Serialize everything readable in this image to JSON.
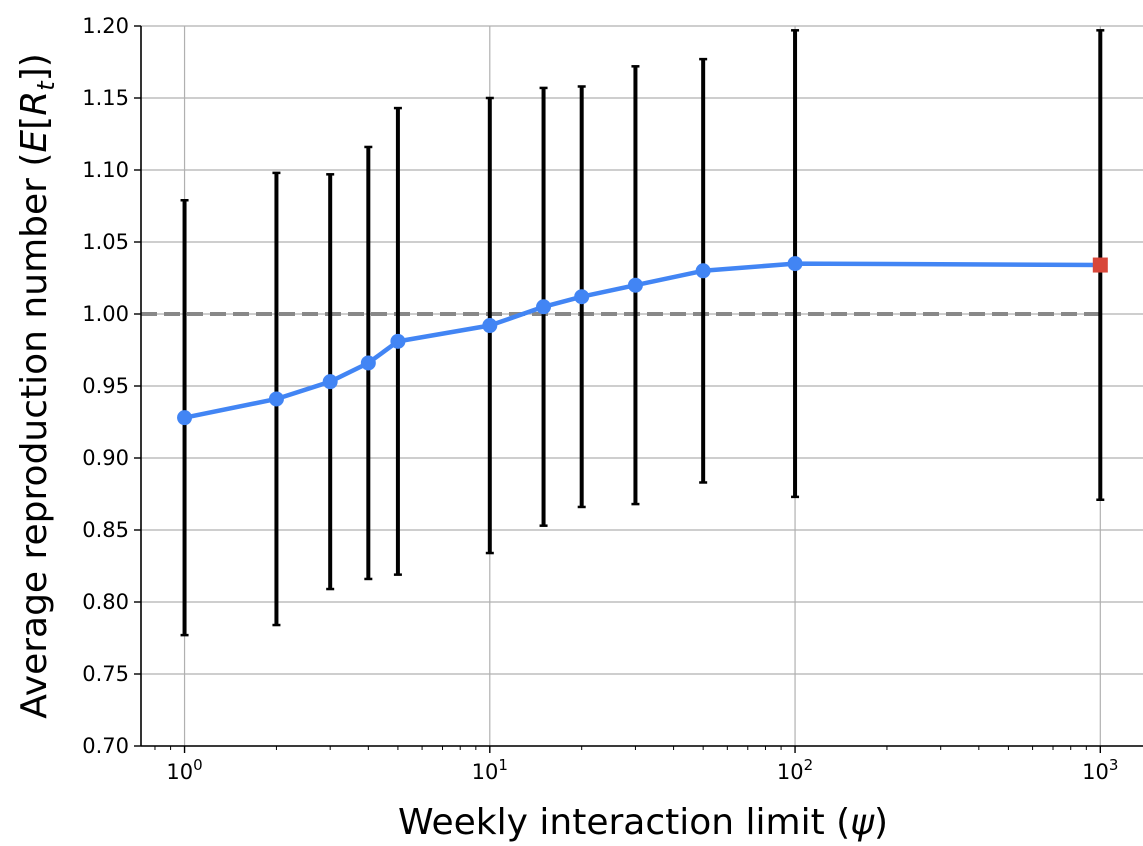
{
  "chart_data": {
    "type": "line",
    "xlabel_text": "Weekly interaction limit (",
    "xlabel_symbol": "ψ",
    "xlabel_close": ")",
    "ylabel_text": "Average reproduction number (",
    "ylabel_E": "E",
    "ylabel_R": "R",
    "ylabel_sub": "t",
    "x_scale": "log",
    "xlim": [
      0.72,
      1380
    ],
    "ylim": [
      0.7,
      1.2
    ],
    "grid": true,
    "reference_line": {
      "y": 1.0,
      "style": "dashed",
      "color": "#888888"
    },
    "x_ticks": [
      {
        "value": 1,
        "base": "10",
        "exp": "0"
      },
      {
        "value": 10,
        "base": "10",
        "exp": "1"
      },
      {
        "value": 100,
        "base": "10",
        "exp": "2"
      },
      {
        "value": 1000,
        "base": "10",
        "exp": "3"
      }
    ],
    "y_ticks": [
      "0.70",
      "0.75",
      "0.80",
      "0.85",
      "0.90",
      "0.95",
      "1.00",
      "1.05",
      "1.10",
      "1.15",
      "1.20"
    ],
    "series": [
      {
        "color": "#4285f4",
        "marker": "circle",
        "x": [
          1,
          2,
          3,
          4,
          5,
          10,
          15,
          20,
          30,
          50,
          100
        ],
        "y": [
          0.928,
          0.941,
          0.953,
          0.966,
          0.981,
          0.992,
          1.005,
          1.012,
          1.02,
          1.03,
          1.035
        ],
        "err_low": [
          0.777,
          0.784,
          0.809,
          0.816,
          0.819,
          0.834,
          0.853,
          0.866,
          0.868,
          0.883,
          0.873
        ],
        "err_high": [
          1.079,
          1.098,
          1.097,
          1.116,
          1.143,
          1.15,
          1.157,
          1.158,
          1.172,
          1.177,
          1.197
        ]
      },
      {
        "color": "#d8473a",
        "marker": "square",
        "x": [
          1000
        ],
        "y": [
          1.034
        ],
        "err_low": [
          0.871
        ],
        "err_high": [
          1.197
        ]
      }
    ],
    "connect_series": true,
    "errorbar_color": "#000000"
  }
}
